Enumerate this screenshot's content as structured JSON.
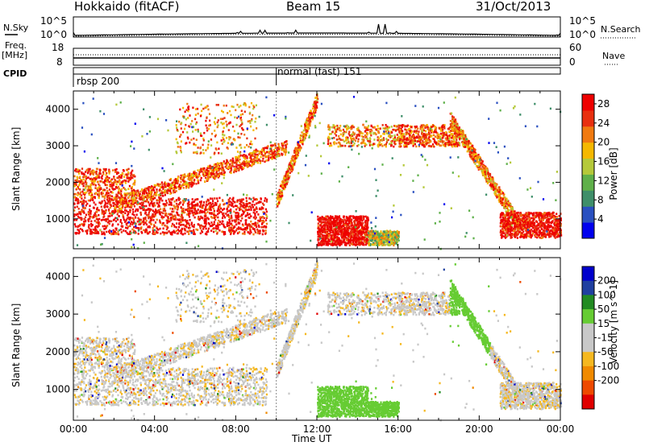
{
  "header": {
    "radar": "Hokkaido (fitACF)",
    "beam": "Beam 15",
    "date": "31/Oct/2013"
  },
  "top_panels": {
    "nsky_label": "N.Sky",
    "nsearch_label": "N.Search",
    "noise_ticks": [
      "10^5",
      "10^0"
    ],
    "freq_label": "Freq.",
    "freq_unit": "[MHz]",
    "freq_ticks": [
      "18",
      "8"
    ],
    "nave_label": "Nave",
    "nave_ticks": [
      "60",
      "0"
    ],
    "cpid_label": "CPID",
    "cpid_segments": [
      "rbsp 200",
      "normal (fast) 151"
    ]
  },
  "colors": {
    "power": [
      "#0000ee",
      "#2a50c0",
      "#3f8f6a",
      "#5fb04a",
      "#b5c93a",
      "#f5b800",
      "#f07a10",
      "#e83010",
      "#ee0000"
    ],
    "velocity": [
      "#e00000",
      "#ee4a00",
      "#f08a00",
      "#f5b820",
      "#c8c8c8",
      "#c8c8c8",
      "#66cc33",
      "#228b22",
      "#2040a0",
      "#0000cc"
    ],
    "gray_scatter": "#c8c8c8"
  },
  "chart_data": [
    {
      "type": "heatmap",
      "title": "Power",
      "ylabel": "Slant Range [km]",
      "xlabel": "",
      "x_ticks": [
        "00:00",
        "04:00",
        "08:00",
        "12:00",
        "16:00",
        "20:00",
        "00:00"
      ],
      "xlim_hours": [
        0,
        24
      ],
      "ylim_km": [
        180,
        4500
      ],
      "y_ticks": [
        1000,
        2000,
        3000,
        4000
      ],
      "colorbar_label": "Power [dB]",
      "colorbar_ticks": [
        4,
        8,
        12,
        16,
        20,
        24,
        28
      ],
      "colorbar_range": [
        0,
        30
      ]
    },
    {
      "type": "heatmap",
      "title": "Velocity",
      "ylabel": "Slant Range [km]",
      "xlabel": "Time UT",
      "x_ticks": [
        "00:00",
        "04:00",
        "08:00",
        "12:00",
        "16:00",
        "20:00",
        "00:00"
      ],
      "xlim_hours": [
        0,
        24
      ],
      "ylim_km": [
        180,
        4500
      ],
      "y_ticks": [
        1000,
        2000,
        3000,
        4000
      ],
      "colorbar_label": "Velocity [m s^-1]",
      "colorbar_ticks": [
        200,
        100,
        50,
        15,
        -15,
        -50,
        -100,
        -200
      ]
    }
  ]
}
